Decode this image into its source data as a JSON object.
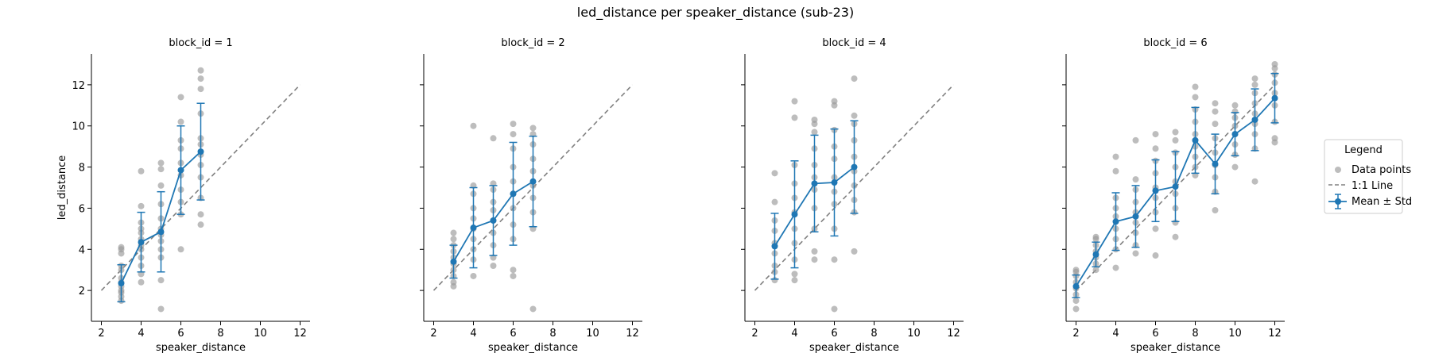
{
  "figure": {
    "title": "led_distance per speaker_distance (sub-23)"
  },
  "legend": {
    "title": "Legend",
    "items": [
      "Data points",
      "1:1 Line",
      "Mean ± Std"
    ]
  },
  "colors": {
    "points": "#999999",
    "mean": "#1f77b4",
    "identity": "#808080"
  },
  "chart_data": [
    {
      "type": "scatter",
      "title": "block_id = 1",
      "xlabel": "speaker_distance",
      "ylabel": "led_distance",
      "xlim": [
        1.5,
        12.5
      ],
      "ylim": [
        0.5,
        13.5
      ],
      "xticks": [
        2,
        4,
        6,
        8,
        10,
        12
      ],
      "yticks": [
        2,
        4,
        6,
        8,
        10,
        12
      ],
      "points": [
        [
          3,
          1.5
        ],
        [
          3,
          1.7
        ],
        [
          3,
          1.9
        ],
        [
          3,
          2.0
        ],
        [
          3,
          2.2
        ],
        [
          3,
          2.4
        ],
        [
          3,
          2.6
        ],
        [
          3,
          3.0
        ],
        [
          3,
          3.2
        ],
        [
          3,
          3.8
        ],
        [
          3,
          4.0
        ],
        [
          3,
          4.1
        ],
        [
          4,
          2.4
        ],
        [
          4,
          2.8
        ],
        [
          4,
          3.2
        ],
        [
          4,
          3.6
        ],
        [
          4,
          4.0
        ],
        [
          4,
          4.2
        ],
        [
          4,
          4.5
        ],
        [
          4,
          4.8
        ],
        [
          4,
          5.0
        ],
        [
          4,
          5.3
        ],
        [
          4,
          6.1
        ],
        [
          4,
          7.8
        ],
        [
          5,
          1.1
        ],
        [
          5,
          2.5
        ],
        [
          5,
          3.6
        ],
        [
          5,
          4.0
        ],
        [
          5,
          4.4
        ],
        [
          5,
          4.7
        ],
        [
          5,
          5.0
        ],
        [
          5,
          5.5
        ],
        [
          5,
          6.2
        ],
        [
          5,
          7.1
        ],
        [
          5,
          7.9
        ],
        [
          5,
          8.2
        ],
        [
          6,
          4.0
        ],
        [
          6,
          5.7
        ],
        [
          6,
          6.3
        ],
        [
          6,
          6.9
        ],
        [
          6,
          7.6
        ],
        [
          6,
          8.2
        ],
        [
          6,
          8.9
        ],
        [
          6,
          9.3
        ],
        [
          6,
          10.2
        ],
        [
          6,
          11.4
        ],
        [
          7,
          5.2
        ],
        [
          7,
          5.7
        ],
        [
          7,
          6.5
        ],
        [
          7,
          7.5
        ],
        [
          7,
          8.1
        ],
        [
          7,
          8.6
        ],
        [
          7,
          9.1
        ],
        [
          7,
          9.4
        ],
        [
          7,
          10.6
        ],
        [
          7,
          11.8
        ],
        [
          7,
          12.3
        ],
        [
          7,
          12.7
        ]
      ],
      "mean": [
        {
          "x": 3,
          "y": 2.35,
          "std": 0.9
        },
        {
          "x": 4,
          "y": 4.35,
          "std": 1.45
        },
        {
          "x": 5,
          "y": 4.85,
          "std": 1.95
        },
        {
          "x": 6,
          "y": 7.85,
          "std": 2.15
        },
        {
          "x": 7,
          "y": 8.75,
          "std": 2.35
        }
      ],
      "identity": [
        2,
        12
      ]
    },
    {
      "type": "scatter",
      "title": "block_id = 2",
      "xlabel": "speaker_distance",
      "ylabel": "",
      "xlim": [
        1.5,
        12.5
      ],
      "ylim": [
        0.5,
        13.5
      ],
      "xticks": [
        2,
        4,
        6,
        8,
        10,
        12
      ],
      "yticks": [
        2,
        4,
        6,
        8,
        10,
        12
      ],
      "points": [
        [
          3,
          2.2
        ],
        [
          3,
          2.4
        ],
        [
          3,
          2.7
        ],
        [
          3,
          3.0
        ],
        [
          3,
          3.3
        ],
        [
          3,
          3.6
        ],
        [
          3,
          3.9
        ],
        [
          3,
          4.2
        ],
        [
          3,
          4.5
        ],
        [
          3,
          4.8
        ],
        [
          4,
          2.7
        ],
        [
          4,
          3.5
        ],
        [
          4,
          4.0
        ],
        [
          4,
          4.5
        ],
        [
          4,
          5.0
        ],
        [
          4,
          5.5
        ],
        [
          4,
          6.0
        ],
        [
          4,
          6.7
        ],
        [
          4,
          7.1
        ],
        [
          4,
          10.0
        ],
        [
          5,
          3.2
        ],
        [
          5,
          3.6
        ],
        [
          5,
          4.2
        ],
        [
          5,
          4.8
        ],
        [
          5,
          5.4
        ],
        [
          5,
          5.9
        ],
        [
          5,
          6.3
        ],
        [
          5,
          6.9
        ],
        [
          5,
          7.2
        ],
        [
          5,
          9.4
        ],
        [
          6,
          2.7
        ],
        [
          6,
          3.0
        ],
        [
          6,
          4.5
        ],
        [
          6,
          5.2
        ],
        [
          6,
          6.0
        ],
        [
          6,
          6.7
        ],
        [
          6,
          7.3
        ],
        [
          6,
          8.0
        ],
        [
          6,
          8.9
        ],
        [
          6,
          9.6
        ],
        [
          6,
          10.1
        ],
        [
          7,
          1.1
        ],
        [
          7,
          5.0
        ],
        [
          7,
          5.8
        ],
        [
          7,
          6.5
        ],
        [
          7,
          7.1
        ],
        [
          7,
          7.8
        ],
        [
          7,
          8.4
        ],
        [
          7,
          9.1
        ],
        [
          7,
          9.6
        ],
        [
          7,
          9.9
        ]
      ],
      "mean": [
        {
          "x": 3,
          "y": 3.4,
          "std": 0.8
        },
        {
          "x": 4,
          "y": 5.05,
          "std": 1.95
        },
        {
          "x": 5,
          "y": 5.4,
          "std": 1.7
        },
        {
          "x": 6,
          "y": 6.7,
          "std": 2.5
        },
        {
          "x": 7,
          "y": 7.3,
          "std": 2.2
        }
      ],
      "identity": [
        2,
        12
      ]
    },
    {
      "type": "scatter",
      "title": "block_id = 4",
      "xlabel": "speaker_distance",
      "ylabel": "",
      "xlim": [
        1.5,
        12.5
      ],
      "ylim": [
        0.5,
        13.5
      ],
      "xticks": [
        2,
        4,
        6,
        8,
        10,
        12
      ],
      "yticks": [
        2,
        4,
        6,
        8,
        10,
        12
      ],
      "points": [
        [
          3,
          2.5
        ],
        [
          3,
          2.9
        ],
        [
          3,
          3.2
        ],
        [
          3,
          3.8
        ],
        [
          3,
          4.3
        ],
        [
          3,
          4.9
        ],
        [
          3,
          5.4
        ],
        [
          3,
          6.3
        ],
        [
          3,
          7.7
        ],
        [
          4,
          2.5
        ],
        [
          4,
          2.8
        ],
        [
          4,
          3.5
        ],
        [
          4,
          4.3
        ],
        [
          4,
          5.0
        ],
        [
          4,
          5.8
        ],
        [
          4,
          6.5
        ],
        [
          4,
          7.2
        ],
        [
          4,
          8.1
        ],
        [
          4,
          10.4
        ],
        [
          4,
          11.2
        ],
        [
          5,
          3.5
        ],
        [
          5,
          3.9
        ],
        [
          5,
          5.0
        ],
        [
          5,
          6.0
        ],
        [
          5,
          6.9
        ],
        [
          5,
          7.5
        ],
        [
          5,
          8.1
        ],
        [
          5,
          8.9
        ],
        [
          5,
          9.7
        ],
        [
          5,
          10.1
        ],
        [
          5,
          10.3
        ],
        [
          6,
          1.1
        ],
        [
          6,
          3.5
        ],
        [
          6,
          5.0
        ],
        [
          6,
          6.2
        ],
        [
          6,
          6.8
        ],
        [
          6,
          7.5
        ],
        [
          6,
          8.4
        ],
        [
          6,
          9.0
        ],
        [
          6,
          9.8
        ],
        [
          6,
          11.0
        ],
        [
          6,
          11.2
        ],
        [
          7,
          3.9
        ],
        [
          7,
          5.8
        ],
        [
          7,
          6.4
        ],
        [
          7,
          7.1
        ],
        [
          7,
          7.8
        ],
        [
          7,
          8.5
        ],
        [
          7,
          9.3
        ],
        [
          7,
          10.1
        ],
        [
          7,
          10.5
        ],
        [
          7,
          12.3
        ]
      ],
      "mean": [
        {
          "x": 3,
          "y": 4.15,
          "std": 1.6
        },
        {
          "x": 4,
          "y": 5.7,
          "std": 2.6
        },
        {
          "x": 5,
          "y": 7.2,
          "std": 2.35
        },
        {
          "x": 6,
          "y": 7.25,
          "std": 2.6
        },
        {
          "x": 7,
          "y": 8.0,
          "std": 2.25
        }
      ],
      "identity": [
        2,
        12
      ]
    },
    {
      "type": "scatter",
      "title": "block_id = 6",
      "xlabel": "speaker_distance",
      "ylabel": "",
      "xlim": [
        1.5,
        12.5
      ],
      "ylim": [
        0.5,
        13.5
      ],
      "xticks": [
        2,
        4,
        6,
        8,
        10,
        12
      ],
      "yticks": [
        2,
        4,
        6,
        8,
        10,
        12
      ],
      "points": [
        [
          2,
          1.1
        ],
        [
          2,
          1.5
        ],
        [
          2,
          1.8
        ],
        [
          2,
          2.1
        ],
        [
          2,
          2.4
        ],
        [
          2,
          2.7
        ],
        [
          2,
          2.9
        ],
        [
          2,
          3.0
        ],
        [
          3,
          3.0
        ],
        [
          3,
          3.3
        ],
        [
          3,
          3.6
        ],
        [
          3,
          3.9
        ],
        [
          3,
          4.2
        ],
        [
          3,
          4.5
        ],
        [
          3,
          4.6
        ],
        [
          4,
          3.1
        ],
        [
          4,
          4.0
        ],
        [
          4,
          4.5
        ],
        [
          4,
          5.0
        ],
        [
          4,
          5.6
        ],
        [
          4,
          6.0
        ],
        [
          4,
          6.5
        ],
        [
          4,
          7.8
        ],
        [
          4,
          8.5
        ],
        [
          5,
          3.8
        ],
        [
          5,
          4.2
        ],
        [
          5,
          4.8
        ],
        [
          5,
          5.3
        ],
        [
          5,
          5.8
        ],
        [
          5,
          6.3
        ],
        [
          5,
          6.9
        ],
        [
          5,
          7.4
        ],
        [
          5,
          9.3
        ],
        [
          6,
          3.7
        ],
        [
          6,
          5.0
        ],
        [
          6,
          5.8
        ],
        [
          6,
          6.5
        ],
        [
          6,
          7.0
        ],
        [
          6,
          7.7
        ],
        [
          6,
          8.3
        ],
        [
          6,
          8.9
        ],
        [
          6,
          9.6
        ],
        [
          7,
          4.6
        ],
        [
          7,
          5.3
        ],
        [
          7,
          6.0
        ],
        [
          7,
          6.7
        ],
        [
          7,
          7.3
        ],
        [
          7,
          8.0
        ],
        [
          7,
          8.7
        ],
        [
          7,
          9.3
        ],
        [
          7,
          9.7
        ],
        [
          8,
          7.6
        ],
        [
          8,
          8.0
        ],
        [
          8,
          8.5
        ],
        [
          8,
          9.0
        ],
        [
          8,
          9.6
        ],
        [
          8,
          10.2
        ],
        [
          8,
          10.8
        ],
        [
          8,
          11.4
        ],
        [
          8,
          11.9
        ],
        [
          9,
          5.9
        ],
        [
          9,
          6.8
        ],
        [
          9,
          7.5
        ],
        [
          9,
          8.1
        ],
        [
          9,
          8.7
        ],
        [
          9,
          9.4
        ],
        [
          9,
          10.1
        ],
        [
          9,
          10.7
        ],
        [
          9,
          11.1
        ],
        [
          10,
          8.0
        ],
        [
          10,
          8.6
        ],
        [
          10,
          9.1
        ],
        [
          10,
          9.6
        ],
        [
          10,
          10.0
        ],
        [
          10,
          10.4
        ],
        [
          10,
          10.7
        ],
        [
          10,
          11.0
        ],
        [
          11,
          7.3
        ],
        [
          11,
          8.9
        ],
        [
          11,
          9.6
        ],
        [
          11,
          10.1
        ],
        [
          11,
          10.6
        ],
        [
          11,
          11.1
        ],
        [
          11,
          11.6
        ],
        [
          11,
          12.0
        ],
        [
          11,
          12.3
        ],
        [
          12,
          9.2
        ],
        [
          12,
          9.4
        ],
        [
          12,
          10.2
        ],
        [
          12,
          11.0
        ],
        [
          12,
          11.6
        ],
        [
          12,
          12.1
        ],
        [
          12,
          12.5
        ],
        [
          12,
          12.8
        ],
        [
          12,
          13.0
        ]
      ],
      "mean": [
        {
          "x": 2,
          "y": 2.2,
          "std": 0.55
        },
        {
          "x": 3,
          "y": 3.75,
          "std": 0.6
        },
        {
          "x": 4,
          "y": 5.35,
          "std": 1.4
        },
        {
          "x": 5,
          "y": 5.6,
          "std": 1.5
        },
        {
          "x": 6,
          "y": 6.85,
          "std": 1.5
        },
        {
          "x": 7,
          "y": 7.05,
          "std": 1.7
        },
        {
          "x": 8,
          "y": 9.3,
          "std": 1.6
        },
        {
          "x": 9,
          "y": 8.15,
          "std": 1.45
        },
        {
          "x": 10,
          "y": 9.6,
          "std": 1.05
        },
        {
          "x": 11,
          "y": 10.3,
          "std": 1.5
        },
        {
          "x": 12,
          "y": 11.35,
          "std": 1.2
        }
      ],
      "identity": [
        2,
        12
      ]
    }
  ]
}
